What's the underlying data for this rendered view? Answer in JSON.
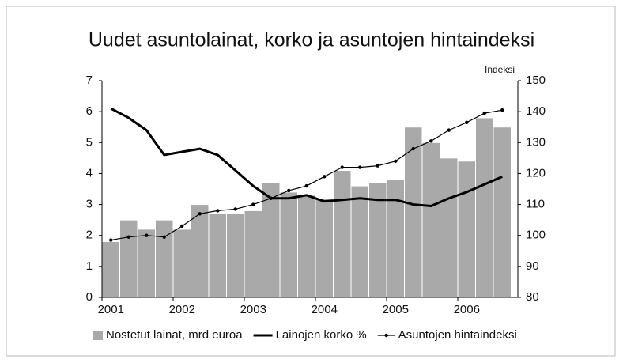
{
  "chart_data": {
    "type": "bar_line",
    "title": "Uudet asuntolainat, korko ja asuntojen hintaindeksi",
    "y2_label": "Indeksi",
    "categories": [
      "2001",
      null,
      null,
      null,
      "2002",
      null,
      null,
      null,
      "2003",
      null,
      null,
      null,
      "2004",
      null,
      null,
      null,
      "2005",
      null,
      null,
      null,
      "2006",
      null,
      null
    ],
    "series": [
      {
        "name": "Nostetut lainat, mrd euroa",
        "kind": "bar",
        "color": "#a9a9a9",
        "values": [
          1.8,
          2.5,
          2.2,
          2.5,
          2.2,
          3.0,
          2.7,
          2.7,
          2.8,
          3.7,
          3.4,
          3.3,
          3.2,
          4.1,
          3.6,
          3.7,
          3.8,
          5.5,
          5.0,
          4.5,
          4.4,
          5.8,
          5.5
        ]
      },
      {
        "name": "Lainojen korko %",
        "kind": "line",
        "color": "#000000",
        "values": [
          6.1,
          5.8,
          5.4,
          4.6,
          4.7,
          4.8,
          4.6,
          4.1,
          3.6,
          3.2,
          3.2,
          3.3,
          3.1,
          3.15,
          3.2,
          3.15,
          3.15,
          3.0,
          2.95,
          3.2,
          3.4,
          3.65,
          3.9
        ]
      },
      {
        "name": "Asuntojen hintaindeksi",
        "kind": "line_marker",
        "axis": "y2",
        "color": "#000000",
        "values": [
          98.5,
          99.5,
          100,
          99.5,
          103,
          107,
          108,
          108.5,
          110,
          112,
          114.5,
          116,
          119,
          122,
          122,
          122.5,
          124,
          128,
          130.5,
          134,
          136.5,
          139.5,
          140.5
        ]
      }
    ],
    "ylim": [
      0,
      7
    ],
    "yticks": [
      0,
      1,
      2,
      3,
      4,
      5,
      6,
      7
    ],
    "y2lim": [
      80,
      150
    ],
    "y2ticks": [
      80,
      90,
      100,
      110,
      120,
      130,
      140,
      150
    ],
    "grid": false
  }
}
